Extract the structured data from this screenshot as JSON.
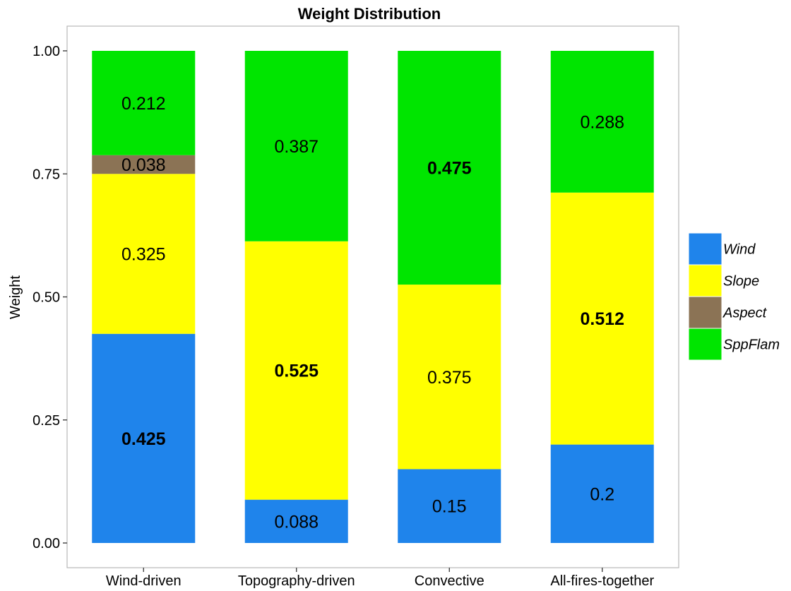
{
  "chart_data": {
    "type": "bar",
    "stacked": true,
    "title": "Weight Distribution",
    "xlabel": "",
    "ylabel": "Weight",
    "ylim": [
      0,
      1
    ],
    "yticks": [
      "0.00",
      "0.25",
      "0.50",
      "0.75",
      "1.00"
    ],
    "grid": false,
    "legend_position": "right",
    "categories": [
      "Wind-driven",
      "Topography-driven",
      "Convective",
      "All-fires-together"
    ],
    "series": [
      {
        "name": "Wind",
        "color": "#1f84eb",
        "values": [
          0.425,
          0.088,
          0.15,
          0.2
        ],
        "labels": [
          "0.425",
          "0.088",
          "0.15",
          "0.2"
        ],
        "bold": [
          true,
          false,
          false,
          false
        ]
      },
      {
        "name": "Slope",
        "color": "#ffff00",
        "values": [
          0.325,
          0.525,
          0.375,
          0.512
        ],
        "labels": [
          "0.325",
          "0.525",
          "0.375",
          "0.512"
        ],
        "bold": [
          false,
          true,
          false,
          true
        ]
      },
      {
        "name": "Aspect",
        "color": "#8b7355",
        "values": [
          0.038,
          0,
          0,
          0
        ],
        "labels": [
          "0.038",
          "",
          "",
          ""
        ],
        "bold": [
          false,
          false,
          false,
          false
        ]
      },
      {
        "name": "SppFlam",
        "color": "#00e500",
        "values": [
          0.212,
          0.387,
          0.475,
          0.288
        ],
        "labels": [
          "0.212",
          "0.387",
          "0.475",
          "0.288"
        ],
        "bold": [
          false,
          false,
          true,
          false
        ]
      }
    ]
  }
}
